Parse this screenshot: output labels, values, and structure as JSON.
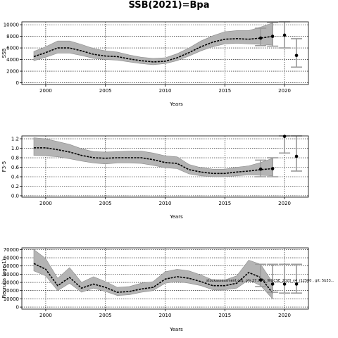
{
  "title": "SSB(2021)=Bpa",
  "chart_data": [
    {
      "type": "line",
      "xlabel": "Years",
      "ylabel": "SSB",
      "xlim": [
        1998,
        2022
      ],
      "ylim": [
        -300,
        10500
      ],
      "xticks": [
        2000,
        2005,
        2010,
        2015,
        2020
      ],
      "yticks": [
        0,
        2000,
        4000,
        6000,
        8000,
        10000
      ],
      "grid": true,
      "series": [
        {
          "x": [
            1999,
            2000,
            2001,
            2002,
            2003,
            2004,
            2005,
            2006,
            2007,
            2008,
            2009,
            2010,
            2011,
            2012,
            2013,
            2014,
            2015,
            2016,
            2017,
            2018,
            2019
          ],
          "values": [
            4500,
            5200,
            6000,
            6000,
            5500,
            4900,
            4600,
            4500,
            4100,
            3800,
            3600,
            3700,
            4300,
            5200,
            6200,
            7000,
            7500,
            7600,
            7500,
            7700,
            8000
          ],
          "lower": [
            3800,
            4400,
            5100,
            5100,
            4700,
            4200,
            4000,
            3900,
            3600,
            3300,
            3100,
            3300,
            3800,
            4600,
            5500,
            6200,
            6700,
            6800,
            6700,
            6600,
            6500
          ],
          "upper": [
            5400,
            6200,
            7200,
            7200,
            6600,
            5900,
            5500,
            5300,
            4800,
            4400,
            4200,
            4300,
            5000,
            6000,
            7200,
            8100,
            8800,
            9000,
            9000,
            9600,
            10300
          ]
        }
      ],
      "points": [
        {
          "x": 2018,
          "y": 7700,
          "lower": 6400,
          "upper": 9400
        },
        {
          "x": 2019,
          "y": 8000,
          "lower": 6300,
          "upper": 10400
        },
        {
          "x": 2020,
          "y": 8200,
          "lower": 6000,
          "upper": 10500
        },
        {
          "x": 2021,
          "y": 4700,
          "lower": 2700,
          "upper": 7600
        }
      ]
    },
    {
      "type": "line",
      "xlabel": "Years",
      "ylabel": "F3-5",
      "xlim": [
        1998,
        2022
      ],
      "ylim": [
        -0.03,
        1.26
      ],
      "xticks": [
        2000,
        2005,
        2010,
        2015,
        2020
      ],
      "yticks": [
        0.0,
        0.2,
        0.4,
        0.6,
        0.8,
        1.0,
        1.2
      ],
      "grid": true,
      "series": [
        {
          "x": [
            1999,
            2000,
            2001,
            2002,
            2003,
            2004,
            2005,
            2006,
            2007,
            2008,
            2009,
            2010,
            2011,
            2012,
            2013,
            2014,
            2015,
            2016,
            2017,
            2018,
            2019
          ],
          "values": [
            1.01,
            1.01,
            0.97,
            0.92,
            0.85,
            0.8,
            0.79,
            0.8,
            0.8,
            0.8,
            0.76,
            0.7,
            0.68,
            0.55,
            0.5,
            0.47,
            0.47,
            0.5,
            0.52,
            0.55,
            0.57
          ],
          "lower": [
            0.85,
            0.84,
            0.82,
            0.78,
            0.73,
            0.69,
            0.67,
            0.69,
            0.69,
            0.68,
            0.64,
            0.59,
            0.57,
            0.46,
            0.42,
            0.4,
            0.4,
            0.42,
            0.44,
            0.43,
            0.42
          ],
          "upper": [
            1.22,
            1.2,
            1.14,
            1.08,
            0.99,
            0.93,
            0.92,
            0.93,
            0.94,
            0.94,
            0.9,
            0.84,
            0.82,
            0.66,
            0.59,
            0.56,
            0.56,
            0.6,
            0.63,
            0.7,
            0.79
          ]
        }
      ],
      "points": [
        {
          "x": 2018,
          "y": 0.56,
          "lower": 0.4,
          "upper": 0.75
        },
        {
          "x": 2019,
          "y": 0.57,
          "lower": 0.4,
          "upper": 0.8
        },
        {
          "x": 2020,
          "y": 1.25,
          "lower": 0.9,
          "upper": 1.3
        },
        {
          "x": 2021,
          "y": 0.83,
          "lower": 0.52,
          "upper": 1.3
        }
      ]
    },
    {
      "type": "line",
      "xlabel": "Years",
      "ylabel": "Recruits (age 1)",
      "xlim": [
        1998,
        2022
      ],
      "ylim": [
        -2500,
        72000
      ],
      "xticks": [
        2000,
        2005,
        2010,
        2015,
        2020
      ],
      "yticks": [
        0,
        10000,
        20000,
        30000,
        40000,
        50000,
        60000,
        70000
      ],
      "grid": true,
      "annotation": "stockassessment.org, ple.27.7h-k_WGCSE_2020_v4_r12500 , git: 5b33...",
      "series": [
        {
          "x": [
            1999,
            2000,
            2001,
            2002,
            2003,
            2004,
            2005,
            2006,
            2007,
            2008,
            2009,
            2010,
            2011,
            2012,
            2013,
            2014,
            2015,
            2016,
            2017,
            2018,
            2019
          ],
          "values": [
            53000,
            46000,
            26000,
            36000,
            23000,
            28000,
            24000,
            18000,
            19000,
            22000,
            24000,
            34000,
            37000,
            35000,
            31000,
            26000,
            26000,
            29000,
            42000,
            36000,
            17000
          ],
          "lower": [
            44000,
            38000,
            20000,
            29000,
            18000,
            23000,
            19000,
            14000,
            15000,
            18000,
            20000,
            29000,
            31000,
            29000,
            26000,
            21000,
            21000,
            23000,
            33000,
            26000,
            10000
          ],
          "upper": [
            70000,
            59000,
            35000,
            48000,
            30000,
            37000,
            31000,
            24000,
            25000,
            29000,
            31000,
            43000,
            46000,
            44000,
            39000,
            33000,
            33000,
            38000,
            57000,
            52000,
            30000
          ]
        }
      ],
      "points": [
        {
          "x": 2018,
          "y": 33000,
          "lower": 25000,
          "upper": 52000
        },
        {
          "x": 2019,
          "y": 28000,
          "lower": 18000,
          "upper": 52000
        },
        {
          "x": 2020,
          "y": 28000,
          "lower": 17000,
          "upper": 52000
        },
        {
          "x": 2021,
          "y": 28000,
          "lower": 17000,
          "upper": 52000
        }
      ]
    }
  ]
}
